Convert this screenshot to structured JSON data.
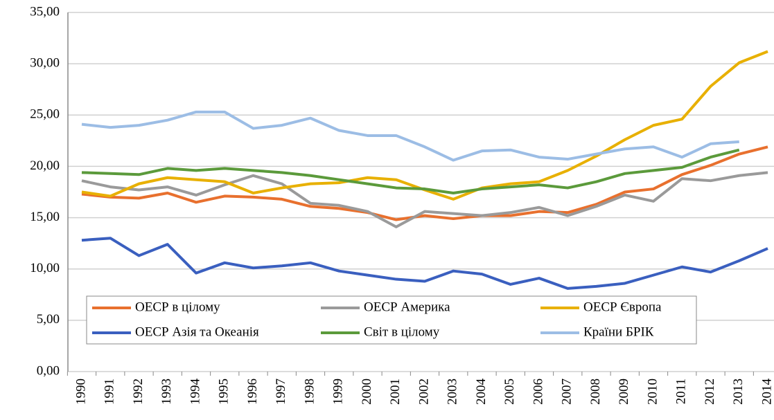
{
  "chart_data": {
    "type": "line",
    "categories": [
      "1990",
      "1991",
      "1992",
      "1993",
      "1994",
      "1995",
      "1996",
      "1997",
      "1998",
      "1999",
      "2000",
      "2001",
      "2002",
      "2003",
      "2004",
      "2005",
      "2006",
      "2007",
      "2008",
      "2009",
      "2010",
      "2011",
      "2012",
      "2013",
      "2014"
    ],
    "ylim": [
      0,
      35
    ],
    "yticks": [
      {
        "value": 0,
        "label": "0,00"
      },
      {
        "value": 5,
        "label": "5,00"
      },
      {
        "value": 10,
        "label": "10,00"
      },
      {
        "value": 15,
        "label": "15,00"
      },
      {
        "value": 20,
        "label": "20,00"
      },
      {
        "value": 25,
        "label": "25,00"
      },
      {
        "value": 30,
        "label": "30,00"
      },
      {
        "value": 35,
        "label": "35,00"
      }
    ],
    "grid": true,
    "legend": "bottom",
    "series": [
      {
        "name": "ОЕСР в цілому",
        "color": "#e8702e",
        "values": [
          17.3,
          17.0,
          16.9,
          17.4,
          16.5,
          17.1,
          17.0,
          16.8,
          16.1,
          15.9,
          15.5,
          14.8,
          15.2,
          14.9,
          15.2,
          15.2,
          15.6,
          15.5,
          16.3,
          17.5,
          17.8,
          19.2,
          20.1,
          21.2,
          21.9
        ]
      },
      {
        "name": "ОЕСР Америка",
        "color": "#9a9a9a",
        "values": [
          18.6,
          18.0,
          17.7,
          18.0,
          17.2,
          18.2,
          19.1,
          18.3,
          16.4,
          16.2,
          15.6,
          14.1,
          15.6,
          15.4,
          15.2,
          15.5,
          16.0,
          15.2,
          16.1,
          17.2,
          16.6,
          18.8,
          18.6,
          19.1,
          19.4
        ]
      },
      {
        "name": "ОЕСР Європа",
        "color": "#e8b000",
        "values": [
          17.5,
          17.1,
          18.3,
          18.9,
          18.7,
          18.5,
          17.4,
          17.9,
          18.3,
          18.4,
          18.9,
          18.7,
          17.7,
          16.8,
          17.9,
          18.3,
          18.5,
          19.6,
          21.0,
          22.6,
          24.0,
          24.6,
          27.8,
          30.1,
          31.2
        ]
      },
      {
        "name": "ОЕСР Азія та Океанія",
        "color": "#3a5fbf",
        "values": [
          12.8,
          13.0,
          11.3,
          12.4,
          9.6,
          10.6,
          10.1,
          10.3,
          10.6,
          9.8,
          9.4,
          9.0,
          8.8,
          9.8,
          9.5,
          8.5,
          9.1,
          8.1,
          8.3,
          8.6,
          9.4,
          10.2,
          9.7,
          10.8,
          12.0
        ]
      },
      {
        "name": "Світ в цілому",
        "color": "#5b9a3b",
        "values": [
          19.4,
          19.3,
          19.2,
          19.8,
          19.6,
          19.8,
          19.6,
          19.4,
          19.1,
          18.7,
          18.3,
          17.9,
          17.8,
          17.4,
          17.8,
          18.0,
          18.2,
          17.9,
          18.5,
          19.3,
          19.6,
          19.9,
          20.9,
          21.6,
          null
        ]
      },
      {
        "name": "Країни БРІК",
        "color": "#9cbde5",
        "values": [
          24.1,
          23.8,
          24.0,
          24.5,
          25.3,
          25.3,
          23.7,
          24.0,
          24.7,
          23.5,
          23.0,
          23.0,
          21.9,
          20.6,
          21.5,
          21.6,
          20.9,
          20.7,
          21.2,
          21.7,
          21.9,
          20.9,
          22.2,
          22.4,
          null
        ]
      }
    ]
  }
}
